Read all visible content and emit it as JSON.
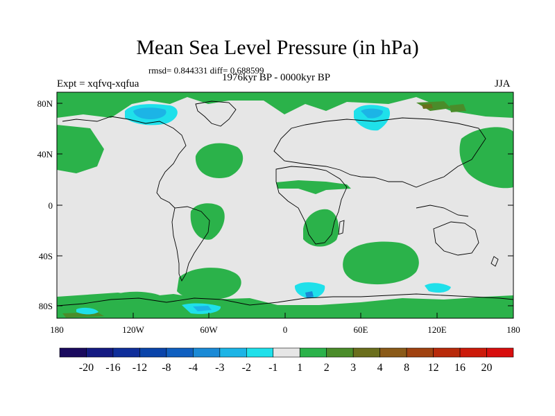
{
  "title": "Mean Sea Level Pressure (in hPa)",
  "stats": "rmsd= 0.844331 diff= 0.688599",
  "experiment": "Expt = xqfvq-xqfua",
  "period": "1976kyr BP - 0000kyr BP",
  "season": "JJA",
  "axes": {
    "y_ticks": [
      "80N",
      "40N",
      "0",
      "40S",
      "80S"
    ],
    "x_ticks": [
      "180",
      "120W",
      "60W",
      "0",
      "60E",
      "120E",
      "180"
    ]
  },
  "colorbar": {
    "labels": [
      "-20",
      "-16",
      "-12",
      "-8",
      "-4",
      "-3",
      "-2",
      "-1",
      "1",
      "2",
      "3",
      "4",
      "8",
      "12",
      "16",
      "20"
    ],
    "colors": [
      "#1a0a5e",
      "#141a82",
      "#0f2e9a",
      "#0a44aa",
      "#0f5fc0",
      "#1a8ad6",
      "#1cb4e6",
      "#1fe0ea",
      "#e6e6e6",
      "#2bb24a",
      "#4a8c2a",
      "#6a6e1c",
      "#8a5a18",
      "#a04210",
      "#b82a0a",
      "#cc1a0a",
      "#d80e0e"
    ]
  },
  "colors": {
    "background_field": "#e6e6e6",
    "positive_1_2": "#2bb24a",
    "positive_2_3": "#4a8c2a",
    "negative_1_2": "#1fe0ea",
    "negative_2_3": "#1cb4e6",
    "negative_3_4": "#1a8ad6"
  }
}
